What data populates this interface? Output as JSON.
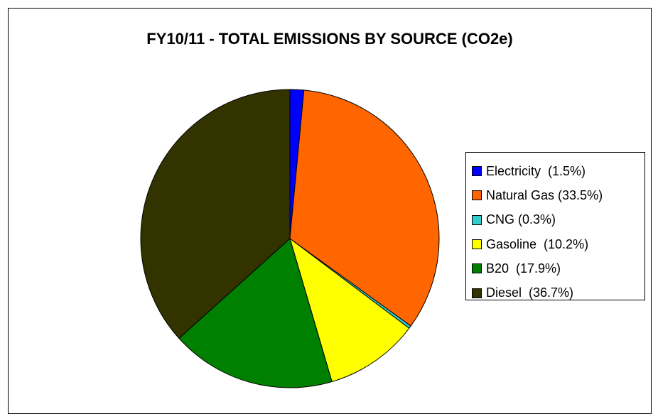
{
  "chart_data": {
    "type": "pie",
    "title": "FY10/11 - TOTAL EMISSIONS BY SOURCE (CO2e)",
    "legend_position": "right",
    "slices": [
      {
        "label": "Electricity",
        "value": 1.5,
        "legend": "Electricity  (1.5%)",
        "color": "#0000ff"
      },
      {
        "label": "Natural Gas",
        "value": 33.5,
        "legend": "Natural Gas (33.5%)",
        "color": "#ff6600"
      },
      {
        "label": "CNG",
        "value": 0.3,
        "legend": "CNG (0.3%)",
        "color": "#33cccc"
      },
      {
        "label": "Gasoline",
        "value": 10.2,
        "legend": "Gasoline  (10.2%)",
        "color": "#ffff00"
      },
      {
        "label": "B20",
        "value": 17.9,
        "legend": "B20  (17.9%)",
        "color": "#008000"
      },
      {
        "label": "Diesel",
        "value": 36.7,
        "legend": "Diesel  (36.7%)",
        "color": "#333300"
      }
    ]
  }
}
